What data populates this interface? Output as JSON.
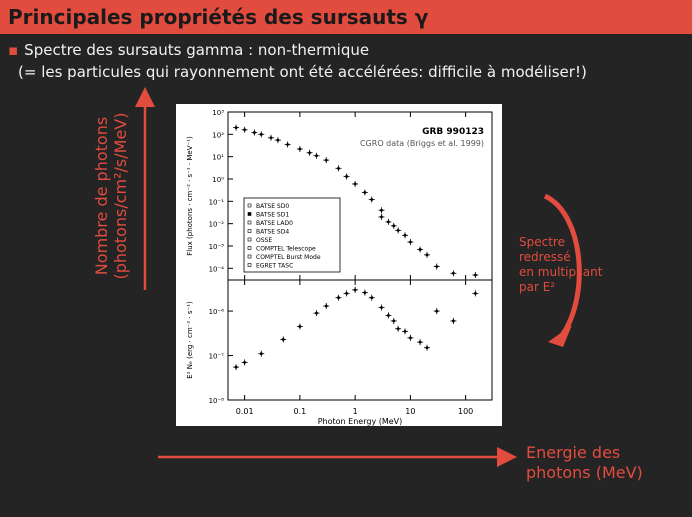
{
  "slide": {
    "title": "Principales propriétés des sursauts γ",
    "bullet": "Spectre des sursauts gamma : non-thermique",
    "subline": "(= les particules qui rayonnement ont été accélérées: difficile à modéliser!)",
    "y_axis_label_line1": "Nombre de photons",
    "y_axis_label_line2": "(photons/cm²/s/MeV)",
    "x_axis_label_line1": "Energie des",
    "x_axis_label_line2": "photons (MeV)",
    "note_lines": [
      "Spectre",
      "redressé",
      "en multipliant",
      "par E²"
    ],
    "accent_color": "#e24c3e",
    "bullet_icon": "square-bullet-icon"
  },
  "chart_data": [
    {
      "type": "scatter",
      "title": "GRB 990123",
      "subtitle": "CGRO data (Briggs et al. 1999)",
      "xlabel": "Photon Energy (MeV)",
      "ylabel": "Flux (photons · cm⁻² · s⁻¹ · MeV⁻¹)",
      "log_x": true,
      "log_y": true,
      "xlim": [
        0.005,
        300
      ],
      "ylim": [
        3e-05,
        1000
      ],
      "x_tick_labels": [
        "0.01",
        "0.1",
        "1",
        "10",
        "100"
      ],
      "y_tick_labels": [
        "10³",
        "10²",
        "10¹",
        "10⁰",
        "10⁻¹",
        "10⁻²",
        "10⁻³",
        "10⁻⁴"
      ],
      "legend": [
        "BATSE SD0",
        "BATSE SD1",
        "BATSE LAD0",
        "BATSE SD4",
        "OSSE",
        "COMPTEL Telescope",
        "COMPTEL Burst Mode",
        "EGRET TASC"
      ],
      "legend_position": "lower-left",
      "series": [
        {
          "name": "BATSE SD0",
          "x": [
            0.007,
            0.01,
            0.015,
            0.02,
            0.03
          ],
          "y": [
            200,
            160,
            120,
            100,
            70
          ]
        },
        {
          "name": "BATSE SD1",
          "x": [
            0.04,
            0.06,
            0.1,
            0.15,
            0.2,
            0.3,
            0.5,
            0.7,
            1,
            1.5,
            2,
            3
          ],
          "y": [
            55,
            35,
            22,
            15,
            11,
            7,
            3,
            1.3,
            0.6,
            0.25,
            0.12,
            0.04
          ]
        },
        {
          "name": "COMPTEL Burst Mode",
          "x": [
            3,
            4,
            5,
            6,
            8,
            10,
            15,
            20
          ],
          "y": [
            0.02,
            0.012,
            0.008,
            0.005,
            0.003,
            0.0015,
            0.0007,
            0.0004
          ]
        },
        {
          "name": "EGRET TASC",
          "x": [
            30,
            60,
            150
          ],
          "y": [
            0.00012,
            6e-05,
            5e-05
          ]
        }
      ]
    },
    {
      "type": "scatter",
      "xlabel": "Photon Energy (MeV)",
      "ylabel": "E² Nₑ (erg · cm⁻² · s⁻¹)",
      "log_x": true,
      "log_y": true,
      "xlim": [
        0.005,
        300
      ],
      "ylim": [
        1e-08,
        5e-06
      ],
      "y_tick_labels": [
        "10⁻⁶",
        "10⁻⁷",
        "10⁻⁸"
      ],
      "series": [
        {
          "name": "BATSE",
          "x": [
            0.007,
            0.01,
            0.02,
            0.05,
            0.1,
            0.2,
            0.3,
            0.5,
            0.7,
            1,
            1.5,
            2
          ],
          "y": [
            5.5e-08,
            7e-08,
            1.1e-07,
            2.3e-07,
            4.5e-07,
            9e-07,
            1.3e-06,
            2e-06,
            2.5e-06,
            3e-06,
            2.6e-06,
            2e-06
          ]
        },
        {
          "name": "COMPTEL",
          "x": [
            3,
            4,
            5,
            6,
            8,
            10,
            15,
            20
          ],
          "y": [
            1.2e-06,
            8e-07,
            6e-07,
            4e-07,
            3.5e-07,
            2.5e-07,
            2e-07,
            1.5e-07
          ]
        },
        {
          "name": "EGRET",
          "x": [
            30,
            60,
            150
          ],
          "y": [
            1e-06,
            6e-07,
            2.5e-06
          ]
        }
      ]
    }
  ]
}
